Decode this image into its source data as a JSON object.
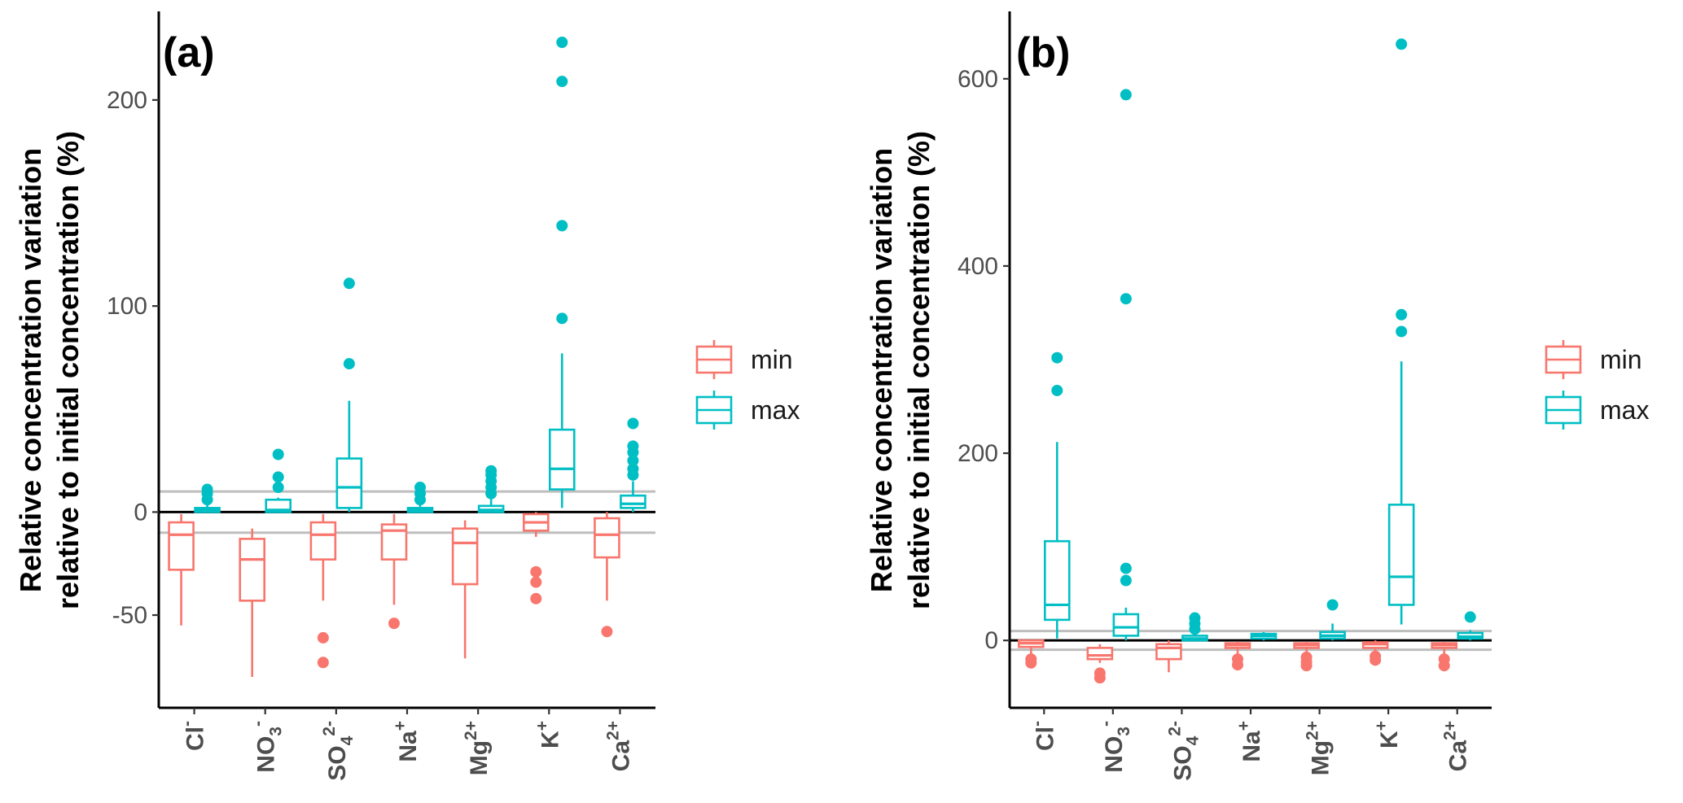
{
  "colors": {
    "min": "#F8766D",
    "max": "#00BFC4",
    "ref_line": "#BEBEBE",
    "zero_line": "#000000"
  },
  "legend": {
    "items": [
      {
        "key": "min",
        "label": "min"
      },
      {
        "key": "max",
        "label": "max"
      }
    ]
  },
  "chart_data": [
    {
      "type": "box",
      "panel_label": "(a)",
      "ylabel": [
        "Relative concentration variation",
        "relative to initial concentration (%)"
      ],
      "yticks": [
        {
          "value": -50,
          "label": "-50"
        },
        {
          "value": 0,
          "label": "0"
        },
        {
          "value": 100,
          "label": "100"
        },
        {
          "value": 200,
          "label": "200"
        }
      ],
      "ylim": [
        -95,
        243
      ],
      "reference_lines": [
        10,
        -10
      ],
      "categories": [
        {
          "base": "Cl",
          "sub": "",
          "sup": "-"
        },
        {
          "base": "NO",
          "sub": "3",
          "sup": "-"
        },
        {
          "base": "SO",
          "sub": "4",
          "sup": "2-"
        },
        {
          "base": "Na",
          "sub": "",
          "sup": "+"
        },
        {
          "base": "Mg",
          "sub": "",
          "sup": "2+"
        },
        {
          "base": "K",
          "sub": "",
          "sup": "+"
        },
        {
          "base": "Ca",
          "sub": "",
          "sup": "2+"
        }
      ],
      "series": [
        {
          "name": "min",
          "boxes": [
            {
              "lo": -55,
              "q1": -28,
              "med": -11,
              "q3": -5,
              "hi": -1,
              "outliers": []
            },
            {
              "lo": -80,
              "q1": -43,
              "med": -23,
              "q3": -13,
              "hi": -8,
              "outliers": []
            },
            {
              "lo": -43,
              "q1": -23,
              "med": -11,
              "q3": -5,
              "hi": -1,
              "outliers": [
                -61,
                -73
              ]
            },
            {
              "lo": -45,
              "q1": -23,
              "med": -9,
              "q3": -6,
              "hi": -1,
              "outliers": [
                -54
              ]
            },
            {
              "lo": -71,
              "q1": -35,
              "med": -15,
              "q3": -8,
              "hi": -4,
              "outliers": []
            },
            {
              "lo": -12,
              "q1": -9,
              "med": -5,
              "q3": -1,
              "hi": 0,
              "outliers": [
                -29,
                -34,
                -42
              ]
            },
            {
              "lo": -43,
              "q1": -22,
              "med": -11,
              "q3": -3,
              "hi": 0,
              "outliers": [
                -58
              ]
            }
          ]
        },
        {
          "name": "max",
          "boxes": [
            {
              "lo": 0,
              "q1": 0,
              "med": 1,
              "q3": 2,
              "hi": 4,
              "outliers": [
                6,
                9,
                11
              ]
            },
            {
              "lo": 0,
              "q1": 0,
              "med": 1,
              "q3": 6,
              "hi": 7,
              "outliers": [
                12,
                17,
                28
              ]
            },
            {
              "lo": 0,
              "q1": 2,
              "med": 12,
              "q3": 26,
              "hi": 54,
              "outliers": [
                72,
                111
              ]
            },
            {
              "lo": 0,
              "q1": 0,
              "med": 1,
              "q3": 2,
              "hi": 4,
              "outliers": [
                6,
                9,
                12
              ]
            },
            {
              "lo": 0,
              "q1": 0,
              "med": 1,
              "q3": 3,
              "hi": 7,
              "outliers": [
                9,
                12,
                15,
                18,
                20
              ]
            },
            {
              "lo": 2,
              "q1": 11,
              "med": 21,
              "q3": 40,
              "hi": 77,
              "outliers": [
                94,
                139,
                209,
                228
              ]
            },
            {
              "lo": 0,
              "q1": 2,
              "med": 4,
              "q3": 8,
              "hi": 15,
              "outliers": [
                18,
                21,
                25,
                29,
                32,
                43
              ]
            }
          ]
        }
      ]
    },
    {
      "type": "box",
      "panel_label": "(b)",
      "ylabel": [
        "Relative concentration variation",
        "relative to initial concentration (%)"
      ],
      "yticks": [
        {
          "value": 0,
          "label": "0"
        },
        {
          "value": 200,
          "label": "200"
        },
        {
          "value": 400,
          "label": "400"
        },
        {
          "value": 600,
          "label": "600"
        }
      ],
      "ylim": [
        -72,
        672
      ],
      "reference_lines": [
        10,
        -10
      ],
      "categories": [
        {
          "base": "Cl",
          "sub": "",
          "sup": "-"
        },
        {
          "base": "NO",
          "sub": "3",
          "sup": "-"
        },
        {
          "base": "SO",
          "sub": "4",
          "sup": "2-"
        },
        {
          "base": "Na",
          "sub": "",
          "sup": "+"
        },
        {
          "base": "Mg",
          "sub": "",
          "sup": "2+"
        },
        {
          "base": "K",
          "sub": "",
          "sup": "+"
        },
        {
          "base": "Ca",
          "sub": "",
          "sup": "2+"
        }
      ],
      "series": [
        {
          "name": "min",
          "boxes": [
            {
              "lo": -17,
              "q1": -7,
              "med": -3,
              "q3": 0,
              "hi": 0,
              "outliers": [
                -20,
                -24
              ]
            },
            {
              "lo": -24,
              "q1": -20,
              "med": -16,
              "q3": -8,
              "hi": -4,
              "outliers": [
                -35,
                -40
              ]
            },
            {
              "lo": -34,
              "q1": -20,
              "med": -8,
              "q3": -4,
              "hi": 0,
              "outliers": []
            },
            {
              "lo": -15,
              "q1": -8,
              "med": -5,
              "q3": -3,
              "hi": -1,
              "outliers": [
                -20,
                -26
              ]
            },
            {
              "lo": -15,
              "q1": -8,
              "med": -5,
              "q3": -3,
              "hi": -1,
              "outliers": [
                -18,
                -23,
                -27
              ]
            },
            {
              "lo": -12,
              "q1": -8,
              "med": -4,
              "q3": -2,
              "hi": 0,
              "outliers": [
                -17,
                -21
              ]
            },
            {
              "lo": -15,
              "q1": -8,
              "med": -5,
              "q3": -3,
              "hi": -1,
              "outliers": [
                -20,
                -27
              ]
            }
          ]
        },
        {
          "name": "max",
          "boxes": [
            {
              "lo": 2,
              "q1": 22,
              "med": 38,
              "q3": 106,
              "hi": 212,
              "outliers": [
                267,
                302
              ]
            },
            {
              "lo": 0,
              "q1": 5,
              "med": 14,
              "q3": 28,
              "hi": 35,
              "outliers": [
                64,
                77,
                365,
                583
              ]
            },
            {
              "lo": 0,
              "q1": 0,
              "med": 2,
              "q3": 5,
              "hi": 8,
              "outliers": [
                12,
                18,
                24
              ]
            },
            {
              "lo": 0,
              "q1": 2,
              "med": 5,
              "q3": 7,
              "hi": 9,
              "outliers": []
            },
            {
              "lo": 0,
              "q1": 2,
              "med": 5,
              "q3": 9,
              "hi": 18,
              "outliers": [
                38
              ]
            },
            {
              "lo": 17,
              "q1": 38,
              "med": 68,
              "q3": 145,
              "hi": 298,
              "outliers": [
                330,
                348,
                637
              ]
            },
            {
              "lo": 0,
              "q1": 2,
              "med": 4,
              "q3": 8,
              "hi": 11,
              "outliers": [
                25
              ]
            }
          ]
        }
      ]
    }
  ]
}
